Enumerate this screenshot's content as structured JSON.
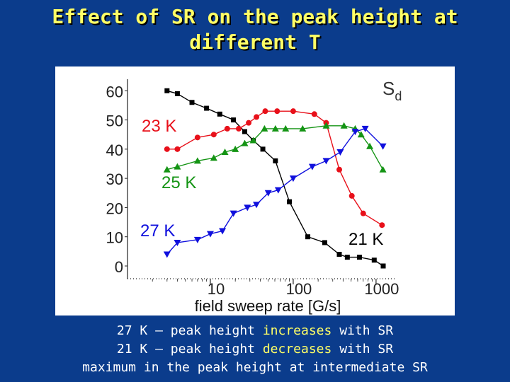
{
  "title": {
    "line1": "Effect of SR on the peak height at",
    "line2": "different T"
  },
  "chart_data": {
    "type": "scatter",
    "corner_label": "S",
    "corner_label_sub": "d",
    "xlabel": "field sweep rate [G/s]",
    "x_scale": "log",
    "xlim": [
      1,
      1400
    ],
    "ylim": [
      0,
      62
    ],
    "y_ticks": [
      "0",
      "10",
      "20",
      "30",
      "40",
      "50",
      "60"
    ],
    "x_ticks": [
      "10",
      "100",
      "1000"
    ],
    "grid": false,
    "series": [
      {
        "name": "21 K",
        "color": "#000000",
        "marker": "square",
        "points": [
          [
            3,
            60
          ],
          [
            4,
            59
          ],
          [
            6,
            56
          ],
          [
            9,
            54
          ],
          [
            13,
            52
          ],
          [
            19,
            50
          ],
          [
            26,
            46
          ],
          [
            33,
            43
          ],
          [
            43,
            40
          ],
          [
            61,
            36
          ],
          [
            90,
            22
          ],
          [
            150,
            10
          ],
          [
            240,
            8
          ],
          [
            360,
            4
          ],
          [
            450,
            3
          ],
          [
            630,
            3
          ],
          [
            950,
            2
          ],
          [
            1220,
            0
          ]
        ]
      },
      {
        "name": "23 K",
        "color": "#e8101a",
        "marker": "circle",
        "points": [
          [
            3,
            40
          ],
          [
            4,
            40
          ],
          [
            7,
            44
          ],
          [
            11,
            45
          ],
          [
            16,
            47
          ],
          [
            22,
            47
          ],
          [
            29,
            49
          ],
          [
            36,
            51
          ],
          [
            46,
            53
          ],
          [
            64,
            53
          ],
          [
            100,
            53
          ],
          [
            180,
            52
          ],
          [
            250,
            49
          ],
          [
            360,
            33
          ],
          [
            510,
            24
          ],
          [
            700,
            18
          ],
          [
            1180,
            14
          ]
        ]
      },
      {
        "name": "25 K",
        "color": "#149414",
        "marker": "triangle-up",
        "points": [
          [
            3,
            33
          ],
          [
            4,
            34
          ],
          [
            7,
            36
          ],
          [
            11,
            37
          ],
          [
            15,
            39
          ],
          [
            20,
            40
          ],
          [
            26,
            42
          ],
          [
            33,
            43
          ],
          [
            45,
            47
          ],
          [
            61,
            47
          ],
          [
            81,
            47
          ],
          [
            130,
            47
          ],
          [
            250,
            48
          ],
          [
            410,
            48
          ],
          [
            560,
            47
          ],
          [
            660,
            45
          ],
          [
            840,
            41
          ],
          [
            1210,
            33
          ]
        ]
      },
      {
        "name": "27 K",
        "color": "#1010dd",
        "marker": "triangle-down",
        "points": [
          [
            3,
            4
          ],
          [
            4,
            8
          ],
          [
            7,
            9
          ],
          [
            10,
            11
          ],
          [
            14,
            12
          ],
          [
            19,
            18
          ],
          [
            28,
            20
          ],
          [
            36,
            21
          ],
          [
            50,
            25
          ],
          [
            66,
            26
          ],
          [
            100,
            30
          ],
          [
            170,
            34
          ],
          [
            250,
            36
          ],
          [
            370,
            39
          ],
          [
            560,
            46
          ],
          [
            740,
            47
          ],
          [
            1210,
            41
          ]
        ]
      }
    ],
    "series_labels": [
      {
        "text": "23 K",
        "series": "23 K"
      },
      {
        "text": "25 K",
        "series": "25 K"
      },
      {
        "text": "27 K",
        "series": "27 K"
      },
      {
        "text": "21 K",
        "series": "21 K"
      }
    ]
  },
  "notes": {
    "line1_before": "27 K – peak height ",
    "line1_highlight": "increases",
    "line1_after": " with SR",
    "line2_before": "21 K – peak height ",
    "line2_highlight": "decreases",
    "line2_after": " with SR",
    "line3": "maximum in the peak height at intermediate SR"
  }
}
